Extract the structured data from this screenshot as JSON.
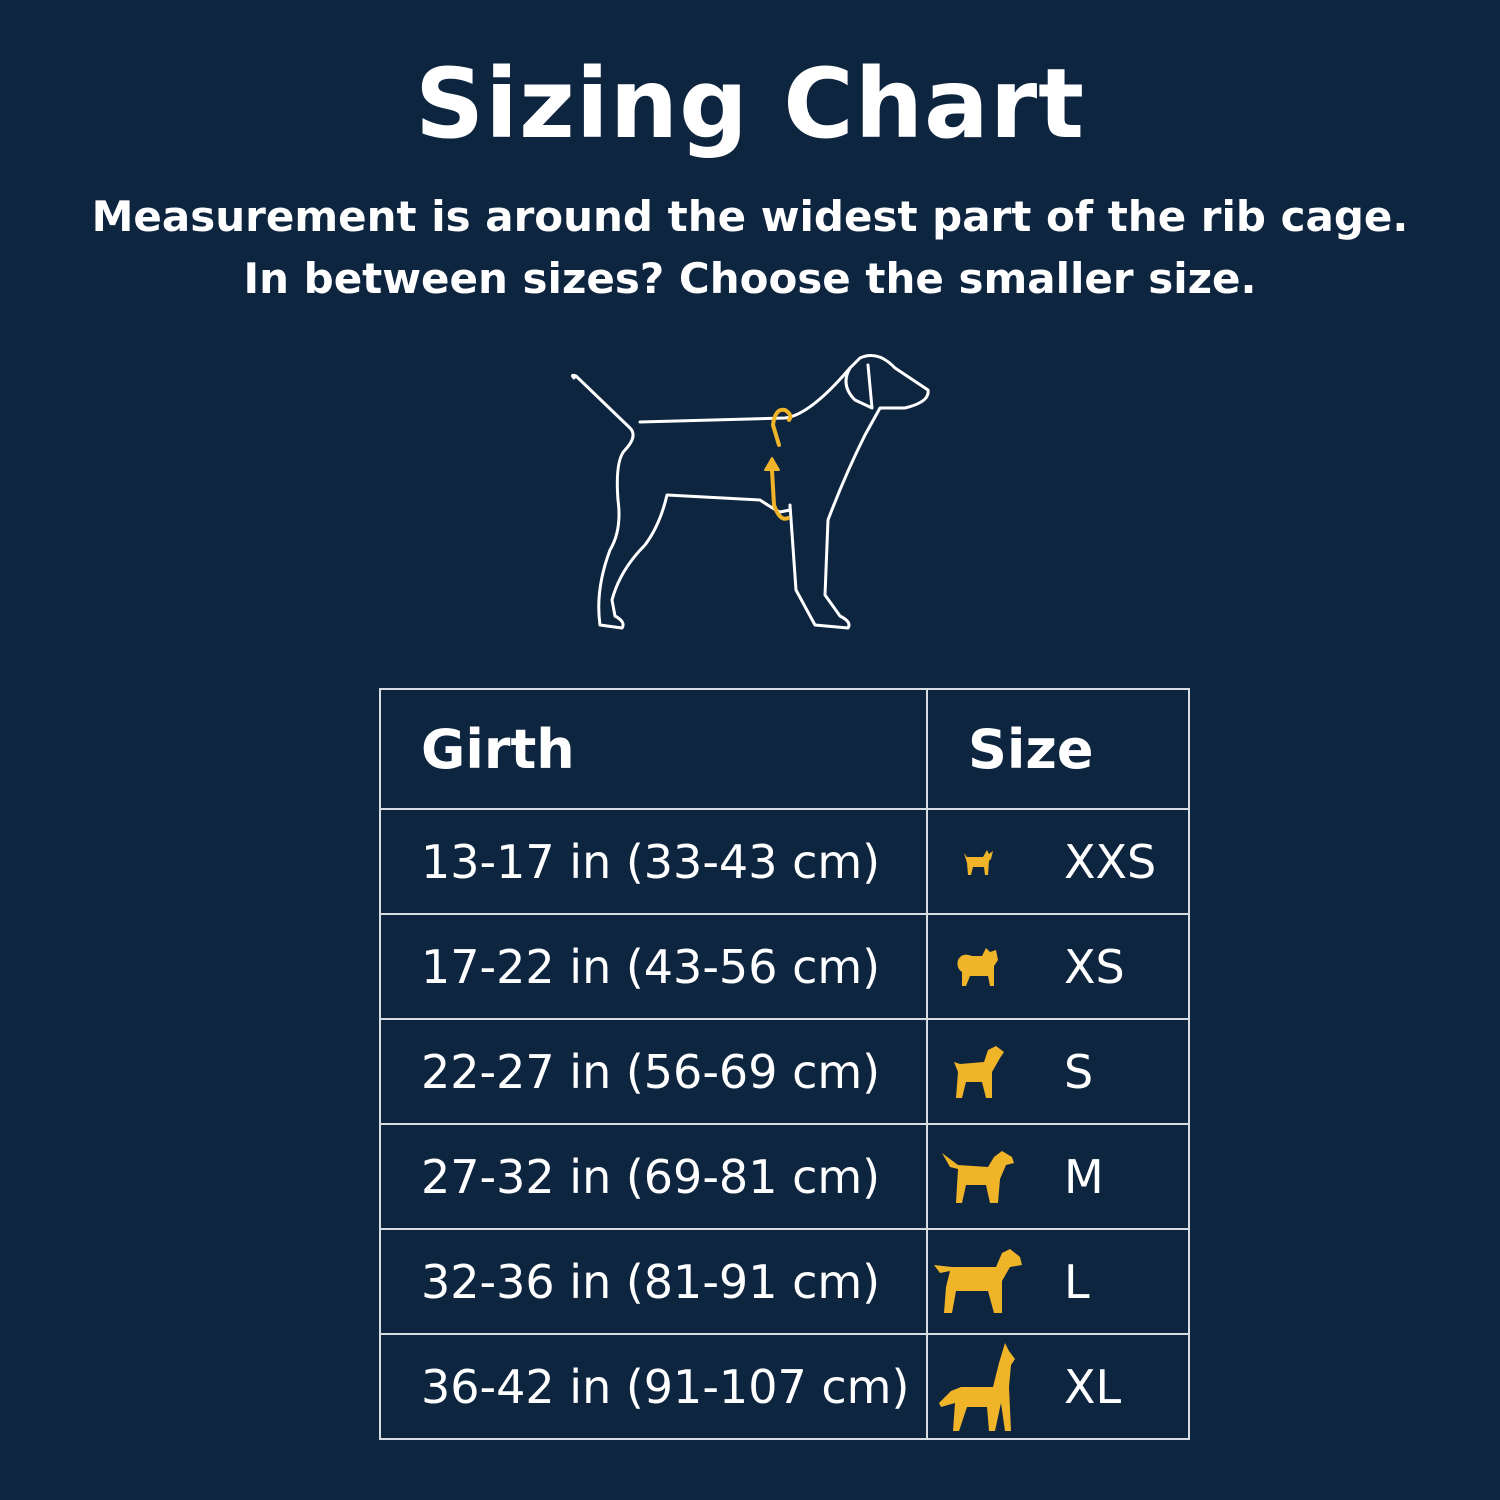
{
  "title": "Sizing Chart",
  "subtitle_line1": "Measurement is around the widest part of the rib cage.",
  "subtitle_line2": "In between sizes? Choose the smaller size.",
  "colors": {
    "background": "#0e2540",
    "accent": "#f0b429",
    "text": "#ffffff"
  },
  "table": {
    "headers": {
      "girth": "Girth",
      "size": "Size"
    },
    "rows": [
      {
        "girth": "13-17 in (33-43 cm)",
        "size": "XXS",
        "icon": "chihuahua-icon"
      },
      {
        "girth": "17-22 in (43-56 cm)",
        "size": "XS",
        "icon": "pomeranian-icon"
      },
      {
        "girth": "22-27 in (56-69 cm)",
        "size": "S",
        "icon": "small-dog-icon"
      },
      {
        "girth": "27-32 in (69-81 cm)",
        "size": "M",
        "icon": "medium-dog-icon"
      },
      {
        "girth": "32-36 in (81-91 cm)",
        "size": "L",
        "icon": "large-dog-icon"
      },
      {
        "girth": "36-42 in (91-107 cm)",
        "size": "XL",
        "icon": "great-dane-icon"
      }
    ]
  }
}
